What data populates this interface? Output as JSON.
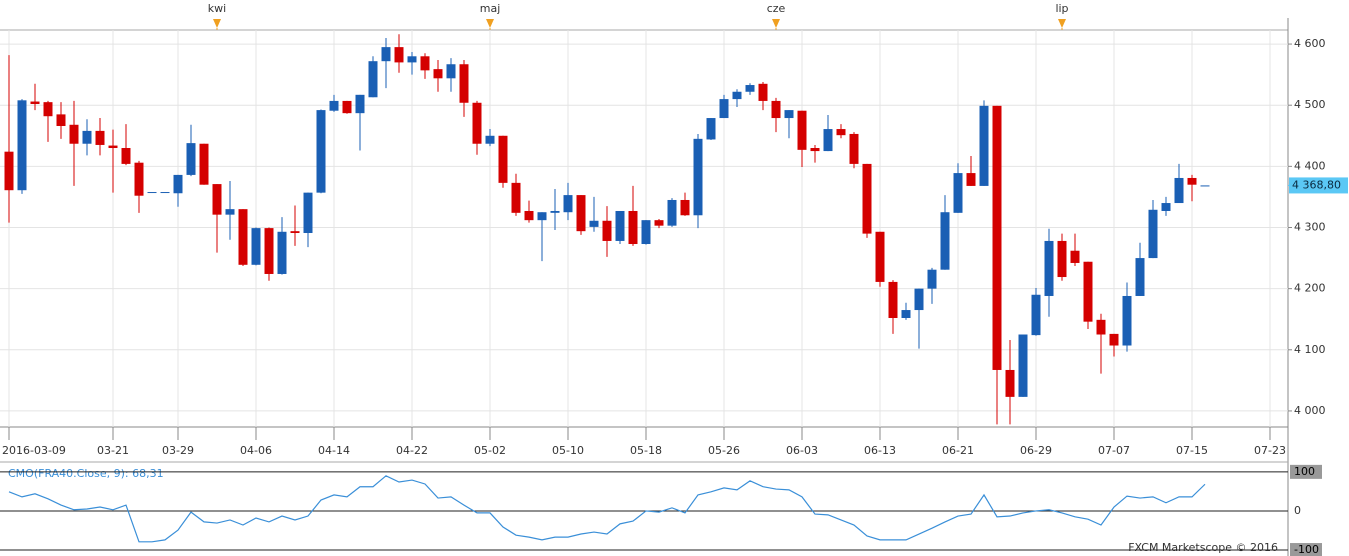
{
  "chart_data": [
    {
      "type": "candlestick",
      "x": [
        "2016-03-09",
        "2016-03-10",
        "2016-03-11",
        "2016-03-14",
        "2016-03-15",
        "2016-03-16",
        "2016-03-17",
        "2016-03-18",
        "2016-03-21",
        "2016-03-22",
        "2016-03-23",
        "2016-03-24",
        "2016-03-25",
        "2016-03-29",
        "2016-03-30",
        "2016-03-31",
        "2016-04-01",
        "2016-04-04",
        "2016-04-05",
        "2016-04-06",
        "2016-04-07",
        "2016-04-08",
        "2016-04-11",
        "2016-04-12",
        "2016-04-13",
        "2016-04-14",
        "2016-04-15",
        "2016-04-18",
        "2016-04-19",
        "2016-04-20",
        "2016-04-21",
        "2016-04-22",
        "2016-04-25",
        "2016-04-26",
        "2016-04-27",
        "2016-04-28",
        "2016-04-29",
        "2016-05-02",
        "2016-05-03",
        "2016-05-04",
        "2016-05-05",
        "2016-05-06",
        "2016-05-09",
        "2016-05-10",
        "2016-05-11",
        "2016-05-12",
        "2016-05-13",
        "2016-05-16",
        "2016-05-17",
        "2016-05-18",
        "2016-05-19",
        "2016-05-20",
        "2016-05-23",
        "2016-05-24",
        "2016-05-25",
        "2016-05-26",
        "2016-05-27",
        "2016-05-30",
        "2016-05-31",
        "2016-06-01",
        "2016-06-02",
        "2016-06-03",
        "2016-06-06",
        "2016-06-07",
        "2016-06-08",
        "2016-06-09",
        "2016-06-10",
        "2016-06-13",
        "2016-06-14",
        "2016-06-15",
        "2016-06-16",
        "2016-06-17",
        "2016-06-20",
        "2016-06-21",
        "2016-06-22",
        "2016-06-23",
        "2016-06-24",
        "2016-06-27",
        "2016-06-28",
        "2016-06-29",
        "2016-06-30",
        "2016-07-01",
        "2016-07-04",
        "2016-07-05",
        "2016-07-06",
        "2016-07-07",
        "2016-07-08",
        "2016-07-11",
        "2016-07-12",
        "2016-07-13",
        "2016-07-14",
        "2016-07-15",
        "2016-07-18"
      ],
      "open": [
        4424,
        4361,
        4506,
        4505,
        4485,
        4468,
        4437,
        4458,
        4434,
        4430,
        4406,
        4358,
        4358,
        4356,
        4386,
        4437,
        4371,
        4321,
        4330,
        4239,
        4299,
        4224,
        4294,
        4291,
        4357,
        4491,
        4507,
        4487,
        4513,
        4572,
        4595,
        4570,
        4580,
        4559,
        4544,
        4567,
        4504,
        4437,
        4450,
        4373,
        4327,
        4312,
        4324,
        4325,
        4353,
        4301,
        4311,
        4278,
        4327,
        4273,
        4312,
        4303,
        4345,
        4320,
        4444,
        4479,
        4510,
        4522,
        4535,
        4507,
        4479,
        4491,
        4430,
        4425,
        4461,
        4453,
        4404,
        4293,
        4211,
        4152,
        4165,
        4200,
        4231,
        4324,
        4389,
        4368,
        4499,
        4067,
        4023,
        4124,
        4188,
        4278,
        4262,
        4244,
        4149,
        4126,
        4107,
        4188,
        4250,
        4327,
        4340,
        4381,
        4368.8
      ],
      "high": [
        4582,
        4510,
        4535,
        4507,
        4505,
        4507,
        4477,
        4479,
        4460,
        4469,
        4409,
        4358,
        4358,
        4386,
        4468,
        4437,
        4371,
        4376,
        4330,
        4300,
        4300,
        4317,
        4336,
        4357,
        4493,
        4517,
        4507,
        4517,
        4580,
        4610,
        4616,
        4587,
        4585,
        4574,
        4577,
        4574,
        4507,
        4461,
        4450,
        4388,
        4344,
        4325,
        4363,
        4373,
        4353,
        4350,
        4335,
        4327,
        4368,
        4312,
        4314,
        4348,
        4357,
        4453,
        4479,
        4517,
        4526,
        4536,
        4538,
        4512,
        4492,
        4491,
        4435,
        4484,
        4469,
        4456,
        4404,
        4293,
        4214,
        4177,
        4200,
        4234,
        4353,
        4405,
        4417,
        4508,
        4499,
        4116,
        4125,
        4201,
        4298,
        4290,
        4290,
        4244,
        4159,
        4126,
        4210,
        4275,
        4345,
        4350,
        4404,
        4386,
        4368.8
      ],
      "low": [
        4308,
        4355,
        4492,
        4440,
        4445,
        4368,
        4418,
        4418,
        4357,
        4402,
        4324,
        4358,
        4358,
        4334,
        4384,
        4370,
        4259,
        4280,
        4237,
        4238,
        4213,
        4223,
        4270,
        4268,
        4356,
        4489,
        4486,
        4426,
        4513,
        4528,
        4553,
        4550,
        4543,
        4522,
        4522,
        4481,
        4419,
        4433,
        4365,
        4319,
        4308,
        4245,
        4296,
        4312,
        4288,
        4293,
        4252,
        4273,
        4270,
        4272,
        4299,
        4301,
        4319,
        4299,
        4443,
        4479,
        4497,
        4517,
        4492,
        4456,
        4446,
        4399,
        4406,
        4425,
        4446,
        4397,
        4283,
        4203,
        4126,
        4149,
        4102,
        4175,
        4231,
        4324,
        4368,
        4368,
        3978,
        3978,
        4023,
        4123,
        4154,
        4213,
        4237,
        4134,
        4061,
        4089,
        4097,
        4188,
        4250,
        4319,
        4340,
        4343,
        4368.8
      ],
      "close": [
        4361,
        4508,
        4502,
        4482,
        4466,
        4437,
        4458,
        4435,
        4430,
        4404,
        4352,
        4358,
        4358,
        4386,
        4438,
        4370,
        4321,
        4330,
        4239,
        4299,
        4224,
        4293,
        4291,
        4357,
        4492,
        4507,
        4487,
        4517,
        4572,
        4595,
        4570,
        4580,
        4557,
        4544,
        4567,
        4504,
        4437,
        4450,
        4373,
        4324,
        4312,
        4325,
        4327,
        4353,
        4294,
        4311,
        4278,
        4327,
        4273,
        4312,
        4303,
        4345,
        4320,
        4445,
        4479,
        4510,
        4522,
        4533,
        4507,
        4479,
        4492,
        4427,
        4425,
        4461,
        4451,
        4404,
        4290,
        4211,
        4152,
        4165,
        4200,
        4231,
        4325,
        4389,
        4368,
        4499,
        4067,
        4023,
        4125,
        4190,
        4278,
        4219,
        4242,
        4146,
        4125,
        4107,
        4188,
        4250,
        4329,
        4340,
        4381,
        4370,
        4368.8
      ],
      "up_color": "#1a5fb4",
      "down_color": "#d40000",
      "ylim": [
        3977,
        4623
      ],
      "yticks": [
        {
          "value": 4000,
          "label": "4 000"
        },
        {
          "value": 4100,
          "label": "4 100"
        },
        {
          "value": 4200,
          "label": "4 200"
        },
        {
          "value": 4300,
          "label": "4 300"
        },
        {
          "value": 4400,
          "label": "4 400"
        },
        {
          "value": 4500,
          "label": "4 500"
        },
        {
          "value": 4600,
          "label": "4 600"
        }
      ],
      "xticks": [
        "2016-03-09",
        {
          "value": "2016-03-21",
          "label": "03-21"
        },
        {
          "value": "2016-03-29",
          "label": "03-29"
        },
        {
          "value": "2016-04-06",
          "label": "04-06"
        },
        {
          "value": "2016-04-14",
          "label": "04-14"
        },
        {
          "value": "2016-04-22",
          "label": "04-22"
        },
        {
          "value": "2016-05-02",
          "label": "05-02"
        },
        {
          "value": "2016-05-10",
          "label": "05-10"
        },
        {
          "value": "2016-05-18",
          "label": "05-18"
        },
        {
          "value": "2016-05-26",
          "label": "05-26"
        },
        {
          "value": "2016-06-03",
          "label": "06-03"
        },
        {
          "value": "2016-06-13",
          "label": "06-13"
        },
        {
          "value": "2016-06-21",
          "label": "06-21"
        },
        {
          "value": "2016-06-29",
          "label": "06-29"
        },
        {
          "value": "2016-07-07",
          "label": "07-07"
        },
        {
          "value": "2016-07-15",
          "label": "07-15"
        },
        {
          "value": "2016-07-23",
          "label": "07-23"
        }
      ],
      "month_markers": [
        {
          "value": "2016-04-01",
          "label": "kwi"
        },
        {
          "value": "2016-05-02",
          "label": "maj"
        },
        {
          "value": "2016-06-01",
          "label": "cze"
        },
        {
          "value": "2016-07-01",
          "label": "lip"
        }
      ],
      "last_price": {
        "value": 4368.8,
        "label": "4 368,80"
      },
      "grid": true
    },
    {
      "type": "line",
      "title": "CMO(FRA40.Close, 9): 68,31",
      "series": [
        {
          "color": "#3a8fd8",
          "values": [
            49,
            36,
            44,
            31,
            15,
            3,
            5,
            10,
            3,
            15,
            -79,
            -79,
            -74,
            -49,
            -3,
            -28,
            -31,
            -23,
            -36,
            -18,
            -28,
            -13,
            -23,
            -13,
            28,
            41,
            36,
            62,
            62,
            90,
            74,
            79,
            69,
            33,
            36,
            15,
            -5,
            -5,
            -41,
            -62,
            -67,
            -74,
            -67,
            -67,
            -59,
            -54,
            -59,
            -33,
            -26,
            0,
            -3,
            8,
            -5,
            41,
            49,
            59,
            54,
            77,
            62,
            56,
            54,
            36,
            -8,
            -10,
            -23,
            -36,
            -64,
            -74,
            -74,
            -74,
            -59,
            -44,
            -28,
            -13,
            -8,
            41,
            -15,
            -13,
            -5,
            0,
            3,
            -5,
            -15,
            -21,
            -36,
            10,
            38,
            33,
            36,
            21,
            36,
            36,
            68.31
          ]
        }
      ],
      "ylim": [
        -105,
        115
      ],
      "yticks": [
        -100,
        0,
        100
      ]
    }
  ],
  "footer": "FXCM Marketscope © 2016"
}
